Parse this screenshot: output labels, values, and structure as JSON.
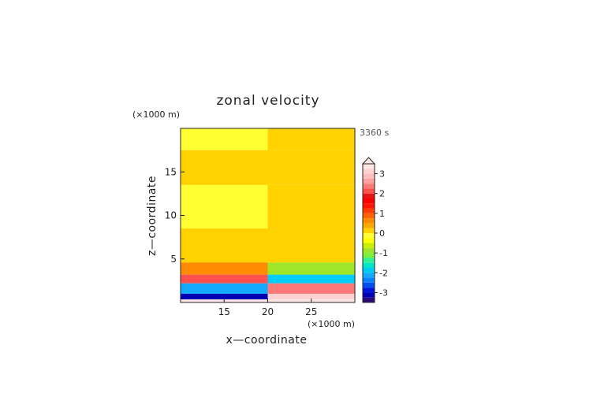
{
  "chart_data": {
    "type": "heatmap",
    "title": "zonal velocity",
    "xlabel": "x—coordinate",
    "ylabel": "z—coordinate",
    "x_unit": "(×1000 m)",
    "y_unit": "(×1000 m)",
    "time_label": "3360 s",
    "xlim": [
      10,
      30
    ],
    "ylim": [
      0,
      20
    ],
    "x_ticks": [
      "15",
      "20",
      "25"
    ],
    "x_tick_values": [
      15,
      20,
      25
    ],
    "y_ticks": [
      "5",
      "10",
      "15"
    ],
    "y_tick_values": [
      5,
      10,
      15
    ],
    "colorbar": {
      "levels": [
        -3.5,
        -3.25,
        -3,
        -2.75,
        -2.5,
        -2.25,
        -2,
        -1.75,
        -1.5,
        -1.25,
        -1,
        -0.75,
        -0.5,
        -0.25,
        0,
        0.25,
        0.5,
        0.75,
        1,
        1.25,
        1.5,
        1.75,
        2,
        2.25,
        2.5,
        2.75,
        3,
        3.25,
        3.5
      ],
      "colors": [
        "#2a0a7a",
        "#0000b4",
        "#0014dc",
        "#0050f0",
        "#0a82ff",
        "#14aaff",
        "#00cdf5",
        "#00e6c8",
        "#32f096",
        "#78f03c",
        "#a0e628",
        "#c8f000",
        "#ffff00",
        "#ffff32",
        "#ffd200",
        "#ffaa00",
        "#ff8c00",
        "#ff6400",
        "#ff3c00",
        "#ff1400",
        "#ff0000",
        "#e61414",
        "#ff5050",
        "#ff7878",
        "#ffa0a0",
        "#ffbebe",
        "#ffd2d2",
        "#ffe6e6"
      ],
      "tick_labels": [
        "-3",
        "-2",
        "-1",
        "0",
        "1",
        "2",
        "3"
      ],
      "tick_values": [
        -3,
        -2,
        -1,
        0,
        1,
        2,
        3
      ],
      "extend_max": true
    },
    "field_regions": [
      {
        "zmin": 0,
        "zmax": 0.35,
        "value_left": 3.3,
        "value_right": 3.3
      },
      {
        "zmin": 0.35,
        "zmax": 1.0,
        "value_left": -3.2,
        "value_right": 3.0
      },
      {
        "zmin": 1.0,
        "zmax": 2.2,
        "value_left": -2.2,
        "value_right": 2.3
      },
      {
        "zmin": 2.2,
        "zmax": 3.2,
        "value_left": 2.0,
        "value_right": -2.0
      },
      {
        "zmin": 3.2,
        "zmax": 4.6,
        "value_left": 0.7,
        "value_right": -1.0
      },
      {
        "zmin": 4.6,
        "zmax": 8.5,
        "value_left": 0.1,
        "value_right": 0.2
      },
      {
        "zmin": 8.5,
        "zmax": 11.0,
        "value_left": -0.1,
        "value_right": 0.1
      },
      {
        "zmin": 11.0,
        "zmax": 13.5,
        "value_left": -0.1,
        "value_right": 0.1
      },
      {
        "zmin": 13.5,
        "zmax": 17.5,
        "value_left": 0.1,
        "value_right": 0.1
      },
      {
        "zmin": 17.5,
        "zmax": 20.0,
        "value_left": -0.1,
        "value_right": 0.1
      }
    ]
  }
}
